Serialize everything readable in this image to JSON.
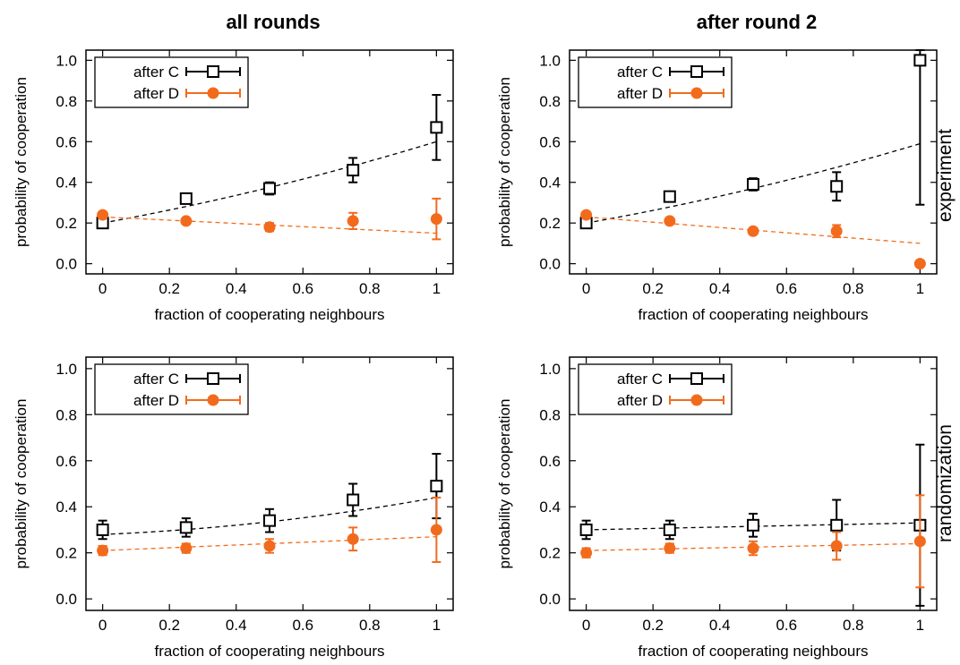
{
  "figure": {
    "column_titles": [
      "all rounds",
      "after round 2"
    ],
    "row_labels": [
      "experiment",
      "randomization"
    ]
  },
  "colors": {
    "after_C": "#000000",
    "after_D": "#f26b1d"
  },
  "chart_data": [
    {
      "type": "scatter",
      "column": "all rounds",
      "row": "experiment",
      "xlabel": "fraction of cooperating neighbours",
      "ylabel": "probability of cooperation",
      "xlim": [
        -0.05,
        1.05
      ],
      "ylim": [
        -0.05,
        1.05
      ],
      "xticks": [
        0,
        0.2,
        0.4,
        0.6,
        0.8,
        1
      ],
      "xtick_labels": [
        "0",
        "0.2",
        "0.4",
        "0.6",
        "0.8",
        "1"
      ],
      "yticks": [
        0,
        0.2,
        0.4,
        0.6,
        0.8,
        1
      ],
      "ytick_labels": [
        "0.0",
        "0.2",
        "0.4",
        "0.6",
        "0.8",
        "1.0"
      ],
      "legend": "top-left",
      "series": [
        {
          "name": "after C",
          "marker": "open-square",
          "color": "#000000",
          "x": [
            0,
            0.25,
            0.5,
            0.75,
            1
          ],
          "y": [
            0.2,
            0.32,
            0.37,
            0.46,
            0.67
          ],
          "err": [
            0.01,
            0.02,
            0.03,
            0.06,
            0.16
          ],
          "fit": {
            "x": [
              0,
              1
            ],
            "y": [
              0.2,
              0.6
            ],
            "curve": "slight-convex"
          }
        },
        {
          "name": "after D",
          "marker": "filled-circle",
          "color": "#f26b1d",
          "x": [
            0,
            0.25,
            0.5,
            0.75,
            1
          ],
          "y": [
            0.24,
            0.21,
            0.18,
            0.21,
            0.22
          ],
          "err": [
            0.01,
            0.01,
            0.02,
            0.04,
            0.1
          ],
          "fit": {
            "x": [
              0,
              1
            ],
            "y": [
              0.23,
              0.15
            ]
          }
        }
      ]
    },
    {
      "type": "scatter",
      "column": "after round 2",
      "row": "experiment",
      "xlabel": "fraction of cooperating neighbours",
      "ylabel": "probability of cooperation",
      "xlim": [
        -0.05,
        1.05
      ],
      "ylim": [
        -0.05,
        1.05
      ],
      "xticks": [
        0,
        0.2,
        0.4,
        0.6,
        0.8,
        1
      ],
      "xtick_labels": [
        "0",
        "0.2",
        "0.4",
        "0.6",
        "0.8",
        "1"
      ],
      "yticks": [
        0,
        0.2,
        0.4,
        0.6,
        0.8,
        1
      ],
      "ytick_labels": [
        "0.0",
        "0.2",
        "0.4",
        "0.6",
        "0.8",
        "1.0"
      ],
      "legend": "top-left",
      "series": [
        {
          "name": "after C",
          "marker": "open-square",
          "color": "#000000",
          "x": [
            0,
            0.25,
            0.5,
            0.75,
            1
          ],
          "y": [
            0.2,
            0.33,
            0.39,
            0.38,
            1.0
          ],
          "err": [
            0.01,
            0.02,
            0.03,
            0.07,
            0.71
          ],
          "fit": {
            "x": [
              0,
              1
            ],
            "y": [
              0.2,
              0.59
            ],
            "curve": "slight-convex"
          }
        },
        {
          "name": "after D",
          "marker": "filled-circle",
          "color": "#f26b1d",
          "x": [
            0,
            0.25,
            0.5,
            0.75,
            1
          ],
          "y": [
            0.24,
            0.21,
            0.16,
            0.16,
            0.0
          ],
          "err": [
            0.01,
            0.01,
            0.01,
            0.03,
            0.0
          ],
          "fit": {
            "x": [
              0,
              1
            ],
            "y": [
              0.23,
              0.1
            ]
          }
        }
      ]
    },
    {
      "type": "scatter",
      "column": "all rounds",
      "row": "randomization",
      "xlabel": "fraction of cooperating neighbours",
      "ylabel": "probability of cooperation",
      "xlim": [
        -0.05,
        1.05
      ],
      "ylim": [
        -0.05,
        1.05
      ],
      "xticks": [
        0,
        0.2,
        0.4,
        0.6,
        0.8,
        1
      ],
      "xtick_labels": [
        "0",
        "0.2",
        "0.4",
        "0.6",
        "0.8",
        "1"
      ],
      "yticks": [
        0,
        0.2,
        0.4,
        0.6,
        0.8,
        1
      ],
      "ytick_labels": [
        "0.0",
        "0.2",
        "0.4",
        "0.6",
        "0.8",
        "1.0"
      ],
      "legend": "top-left",
      "series": [
        {
          "name": "after C",
          "marker": "open-square",
          "color": "#000000",
          "x": [
            0,
            0.25,
            0.5,
            0.75,
            1
          ],
          "y": [
            0.3,
            0.31,
            0.34,
            0.43,
            0.49
          ],
          "err": [
            0.04,
            0.04,
            0.05,
            0.07,
            0.14
          ],
          "fit": {
            "x": [
              0,
              1
            ],
            "y": [
              0.28,
              0.44
            ],
            "curve": "slight-convex"
          }
        },
        {
          "name": "after D",
          "marker": "filled-circle",
          "color": "#f26b1d",
          "x": [
            0,
            0.25,
            0.5,
            0.75,
            1
          ],
          "y": [
            0.21,
            0.22,
            0.23,
            0.26,
            0.3
          ],
          "err": [
            0.02,
            0.02,
            0.03,
            0.05,
            0.14
          ],
          "fit": {
            "x": [
              0,
              1
            ],
            "y": [
              0.21,
              0.27
            ]
          }
        }
      ]
    },
    {
      "type": "scatter",
      "column": "after round 2",
      "row": "randomization",
      "xlabel": "fraction of cooperating neighbours",
      "ylabel": "probability of cooperation",
      "xlim": [
        -0.05,
        1.05
      ],
      "ylim": [
        -0.05,
        1.05
      ],
      "xticks": [
        0,
        0.2,
        0.4,
        0.6,
        0.8,
        1
      ],
      "xtick_labels": [
        "0",
        "0.2",
        "0.4",
        "0.6",
        "0.8",
        "1"
      ],
      "yticks": [
        0,
        0.2,
        0.4,
        0.6,
        0.8,
        1
      ],
      "ytick_labels": [
        "0.0",
        "0.2",
        "0.4",
        "0.6",
        "0.8",
        "1.0"
      ],
      "legend": "top-left",
      "series": [
        {
          "name": "after C",
          "marker": "open-square",
          "color": "#000000",
          "x": [
            0,
            0.25,
            0.5,
            0.75,
            1
          ],
          "y": [
            0.3,
            0.3,
            0.32,
            0.32,
            0.32
          ],
          "err": [
            0.04,
            0.04,
            0.05,
            0.11,
            0.35
          ],
          "fit": {
            "x": [
              0,
              1
            ],
            "y": [
              0.3,
              0.33
            ]
          }
        },
        {
          "name": "after D",
          "marker": "filled-circle",
          "color": "#f26b1d",
          "x": [
            0,
            0.25,
            0.5,
            0.75,
            1
          ],
          "y": [
            0.2,
            0.22,
            0.22,
            0.23,
            0.25
          ],
          "err": [
            0.02,
            0.02,
            0.03,
            0.06,
            0.2
          ],
          "fit": {
            "x": [
              0,
              1
            ],
            "y": [
              0.21,
              0.24
            ]
          }
        }
      ]
    }
  ]
}
